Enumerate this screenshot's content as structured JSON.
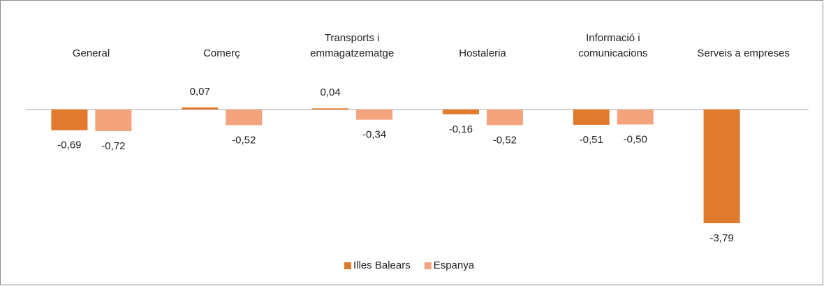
{
  "chart_data": {
    "type": "bar",
    "categories": [
      "General",
      "Comerç",
      "Transports i\nemmagatzematge",
      "Hostaleria",
      "Informació i\ncomunicacions",
      "Serveis a empreses"
    ],
    "series": [
      {
        "name": "Illes Balears",
        "color": "#e07a2c",
        "values": [
          -0.69,
          0.07,
          0.04,
          -0.16,
          -0.51,
          -3.79
        ],
        "value_labels": [
          "-0,69",
          "0,07",
          "0,04",
          "-0,16",
          "-0,51",
          "-3,79"
        ]
      },
      {
        "name": "Espanya",
        "color": "#f4a47c",
        "values": [
          -0.72,
          -0.52,
          -0.34,
          -0.52,
          -0.5,
          null
        ],
        "value_labels": [
          "-0,72",
          "-0,52",
          "-0,34",
          "-0,52",
          "-0,50",
          null
        ]
      }
    ],
    "ylim": [
      -4,
      2
    ],
    "legend": "bottom"
  }
}
